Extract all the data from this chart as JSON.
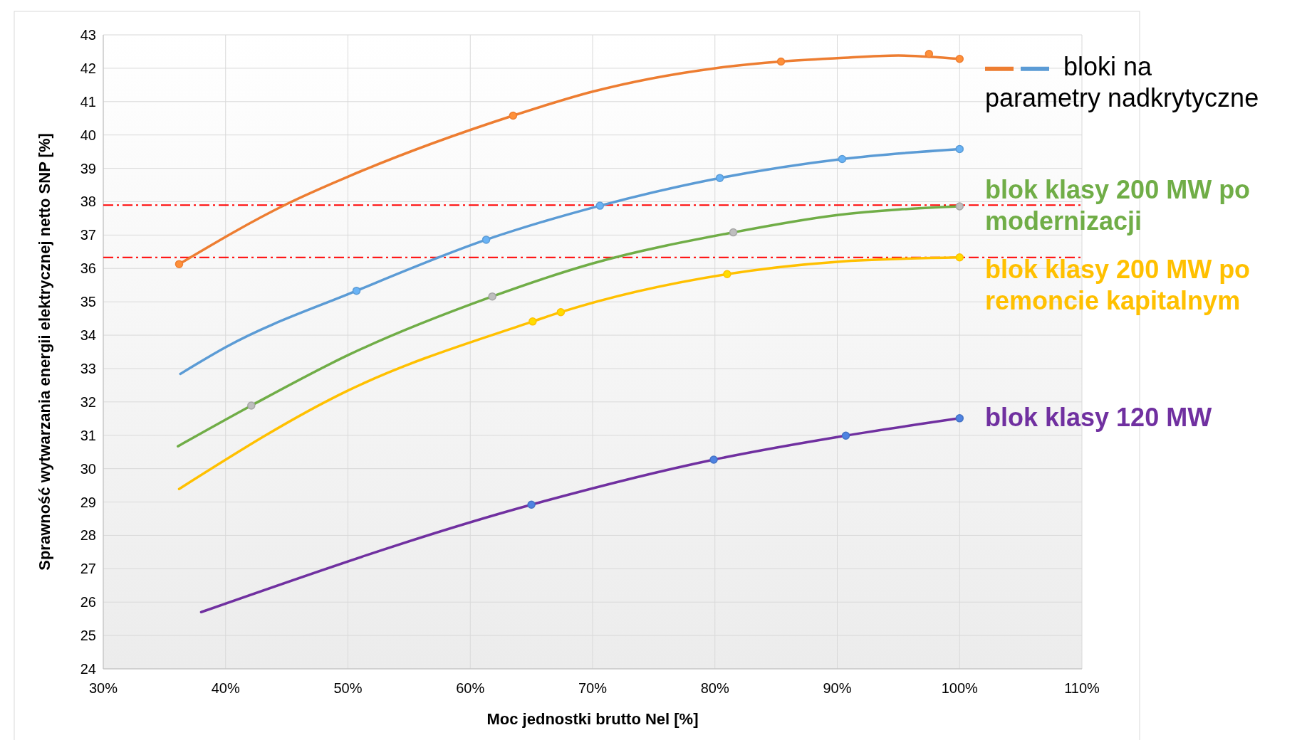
{
  "chart_data": {
    "type": "line",
    "xlabel": "Moc jednostki brutto Nel [%]",
    "ylabel": "Sprawność wytwarzania energii elektrycznej netto SNP [%]",
    "xlim": [
      30,
      110
    ],
    "xticks": [
      {
        "value": 30,
        "label": "30%"
      },
      {
        "value": 40,
        "label": "40%"
      },
      {
        "value": 50,
        "label": "50%"
      },
      {
        "value": 60,
        "label": "60%"
      },
      {
        "value": 70,
        "label": "70%"
      },
      {
        "value": 80,
        "label": "80%"
      },
      {
        "value": 90,
        "label": "90%"
      },
      {
        "value": 100,
        "label": "100%"
      },
      {
        "value": 110,
        "label": "110%"
      }
    ],
    "ylim": [
      24,
      43
    ],
    "yticks": [
      24,
      25,
      26,
      27,
      28,
      29,
      30,
      31,
      32,
      33,
      34,
      35,
      36,
      37,
      38,
      39,
      40,
      41,
      42,
      43
    ],
    "grid": true,
    "legend": "right",
    "line_style": "solid",
    "marker": "none",
    "series": [
      {
        "name": "bloki na parametry nadkrytyczne",
        "color": "#ed7d31",
        "x": [
          36.2,
          45,
          50,
          63.5,
          70,
          80,
          85.4,
          90,
          95,
          100
        ],
        "values": [
          36.13,
          37.93,
          38.75,
          40.58,
          41.3,
          42.0,
          42.2,
          42.3,
          42.38,
          42.28
        ]
      },
      {
        "color": "#5b9bd5",
        "x": [
          36.3,
          40,
          50.7,
          61.3,
          70.6,
          80.4,
          90.4,
          100
        ],
        "values": [
          32.84,
          33.64,
          35.33,
          36.86,
          37.88,
          38.71,
          39.28,
          39.58
        ]
      },
      {
        "name": "blok klasy 200 MW po modernizacji",
        "color": "#70ad47",
        "x": [
          36.1,
          42.1,
          50,
          61.8,
          70,
          81.5,
          90,
          100
        ],
        "values": [
          30.67,
          31.89,
          33.4,
          35.16,
          36.15,
          37.08,
          37.6,
          37.86
        ]
      },
      {
        "name": "blok klasy 200 MW po remoncie kapitalnym",
        "color": "#ffc000",
        "x": [
          36.2,
          50,
          65.1,
          67.4,
          81.0,
          90,
          100
        ],
        "values": [
          29.39,
          32.34,
          34.41,
          34.69,
          35.83,
          36.2,
          36.33
        ]
      },
      {
        "name": "blok klasy 120 MW",
        "color": "#7030a0",
        "x": [
          38.0,
          65.0,
          79.9,
          90.7,
          100
        ],
        "values": [
          25.7,
          28.92,
          30.27,
          30.99,
          31.51
        ]
      },
      {
        "type": "scatter",
        "marker": "circle",
        "color": "#ed7d31",
        "x": [
          36.2,
          63.5,
          85.4,
          97.5,
          100
        ],
        "values": [
          36.13,
          40.58,
          42.2,
          42.43,
          42.28
        ]
      },
      {
        "type": "scatter",
        "marker": "circle",
        "color": "#5b9bd5",
        "x": [
          50.7,
          61.3,
          70.6,
          80.4,
          90.4,
          100
        ],
        "values": [
          35.33,
          36.86,
          37.88,
          38.71,
          39.28,
          39.58
        ]
      },
      {
        "type": "scatter",
        "marker": "circle",
        "color": "#a5a5a5",
        "x": [
          42.1,
          61.8,
          81.5,
          100
        ],
        "values": [
          31.89,
          35.16,
          37.08,
          37.86
        ]
      },
      {
        "type": "scatter",
        "marker": "circle",
        "color": "#ffc000",
        "x": [
          65.1,
          67.4,
          81.0,
          100
        ],
        "values": [
          34.41,
          34.69,
          35.83,
          36.33
        ]
      },
      {
        "type": "scatter",
        "marker": "circle",
        "color": "#4472c4",
        "x": [
          65.0,
          79.9,
          90.7,
          100
        ],
        "values": [
          28.92,
          30.27,
          30.99,
          31.51
        ]
      }
    ],
    "ref_lines": [
      {
        "axis": "y",
        "value": 37.9,
        "color": "#ff0000",
        "line_style": "dashed"
      },
      {
        "axis": "y",
        "value": 36.33,
        "color": "#ff0000",
        "line_style": "dashed"
      }
    ]
  }
}
